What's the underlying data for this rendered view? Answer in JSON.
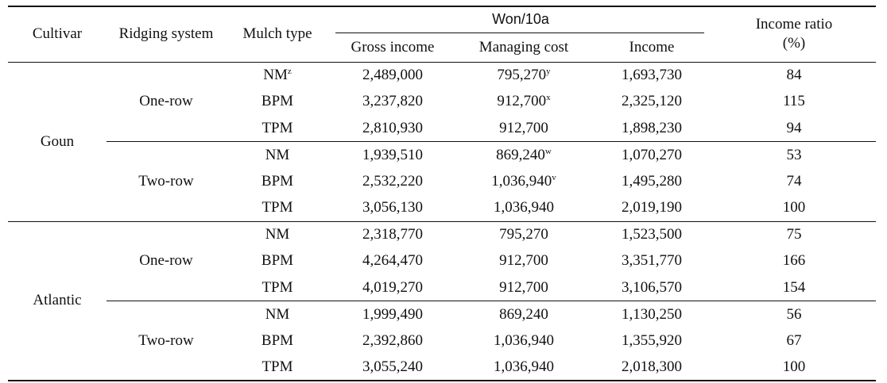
{
  "headers": {
    "cultivar": "Cultivar",
    "ridging_system": "Ridging system",
    "mulch_type": "Mulch type",
    "group": "Won/10a",
    "gross_income": "Gross income",
    "managing_cost": "Managing cost",
    "income": "Income",
    "income_ratio_line1": "Income ratio",
    "income_ratio_line2": "(%)"
  },
  "groups": [
    {
      "cultivar": "Goun",
      "systems": [
        {
          "system": "One-row",
          "rows": [
            {
              "mulch": "NM",
              "mulch_sup": "z",
              "gross": "2,489,000",
              "cost": "795,270",
              "cost_sup": "y",
              "income": "1,693,730",
              "ratio": "84"
            },
            {
              "mulch": "BPM",
              "mulch_sup": "",
              "gross": "3,237,820",
              "cost": "912,700",
              "cost_sup": "x",
              "income": "2,325,120",
              "ratio": "115"
            },
            {
              "mulch": "TPM",
              "mulch_sup": "",
              "gross": "2,810,930",
              "cost": "912,700",
              "cost_sup": "",
              "income": "1,898,230",
              "ratio": "94"
            }
          ]
        },
        {
          "system": "Two-row",
          "rows": [
            {
              "mulch": "NM",
              "mulch_sup": "",
              "gross": "1,939,510",
              "cost": "869,240",
              "cost_sup": "w",
              "income": "1,070,270",
              "ratio": "53"
            },
            {
              "mulch": "BPM",
              "mulch_sup": "",
              "gross": "2,532,220",
              "cost": "1,036,940",
              "cost_sup": "v",
              "income": "1,495,280",
              "ratio": "74"
            },
            {
              "mulch": "TPM",
              "mulch_sup": "",
              "gross": "3,056,130",
              "cost": "1,036,940",
              "cost_sup": "",
              "income": "2,019,190",
              "ratio": "100"
            }
          ]
        }
      ]
    },
    {
      "cultivar": "Atlantic",
      "systems": [
        {
          "system": "One-row",
          "rows": [
            {
              "mulch": "NM",
              "mulch_sup": "",
              "gross": "2,318,770",
              "cost": "795,270",
              "cost_sup": "",
              "income": "1,523,500",
              "ratio": "75"
            },
            {
              "mulch": "BPM",
              "mulch_sup": "",
              "gross": "4,264,470",
              "cost": "912,700",
              "cost_sup": "",
              "income": "3,351,770",
              "ratio": "166"
            },
            {
              "mulch": "TPM",
              "mulch_sup": "",
              "gross": "4,019,270",
              "cost": "912,700",
              "cost_sup": "",
              "income": "3,106,570",
              "ratio": "154"
            }
          ]
        },
        {
          "system": "Two-row",
          "rows": [
            {
              "mulch": "NM",
              "mulch_sup": "",
              "gross": "1,999,490",
              "cost": "869,240",
              "cost_sup": "",
              "income": "1,130,250",
              "ratio": "56"
            },
            {
              "mulch": "BPM",
              "mulch_sup": "",
              "gross": "2,392,860",
              "cost": "1,036,940",
              "cost_sup": "",
              "income": "1,355,920",
              "ratio": "67"
            },
            {
              "mulch": "TPM",
              "mulch_sup": "",
              "gross": "3,055,240",
              "cost": "1,036,940",
              "cost_sup": "",
              "income": "2,018,300",
              "ratio": "100"
            }
          ]
        }
      ]
    }
  ]
}
